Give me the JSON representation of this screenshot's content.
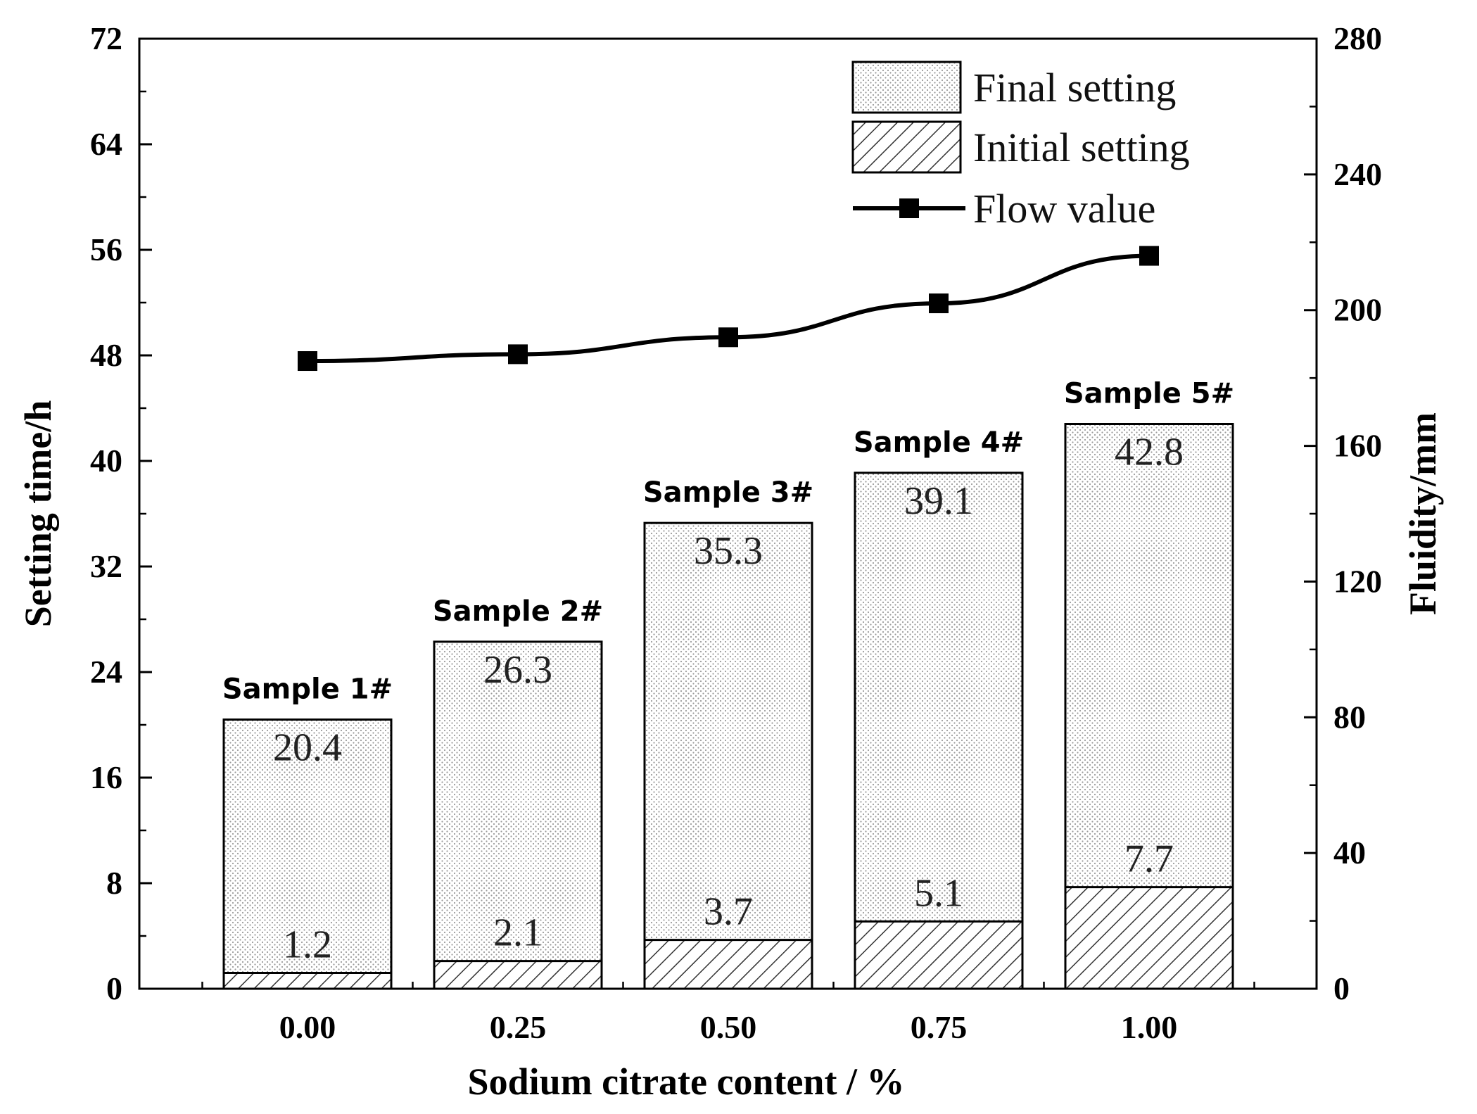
{
  "chart_data": {
    "type": "bar",
    "xlabel": "Sodium citrate content / %",
    "ylabel": "Setting time/h",
    "y2label": "Fluidity/mm",
    "categories": [
      "0.00",
      "0.25",
      "0.50",
      "0.75",
      "1.00"
    ],
    "sample_labels": [
      "Sample 1#",
      "Sample 2#",
      "Sample 3#",
      "Sample 4#",
      "Sample 5#"
    ],
    "ylim": [
      0,
      72
    ],
    "y_ticks": [
      0,
      8,
      16,
      24,
      32,
      40,
      48,
      56,
      64,
      72
    ],
    "y2lim": [
      0,
      280
    ],
    "y2_ticks": [
      0,
      40,
      80,
      120,
      160,
      200,
      240,
      280
    ],
    "series": [
      {
        "name": "Final setting",
        "type": "bar",
        "axis": "left",
        "values": [
          20.4,
          26.3,
          35.3,
          39.1,
          42.8
        ],
        "labels": [
          "20.4",
          "26.3",
          "35.3",
          "39.1",
          "42.8"
        ]
      },
      {
        "name": "Initial setting",
        "type": "bar",
        "axis": "left",
        "values": [
          1.2,
          2.1,
          3.7,
          5.1,
          7.7
        ],
        "labels": [
          "1.2",
          "2.1",
          "3.7",
          "5.1",
          "7.7"
        ]
      },
      {
        "name": "Flow value",
        "type": "line",
        "axis": "right",
        "values": [
          185,
          187,
          192,
          202,
          216
        ]
      }
    ],
    "legend": [
      "Final setting",
      "Initial setting",
      "Flow value"
    ],
    "legend_position": "top-right",
    "grid": false
  }
}
